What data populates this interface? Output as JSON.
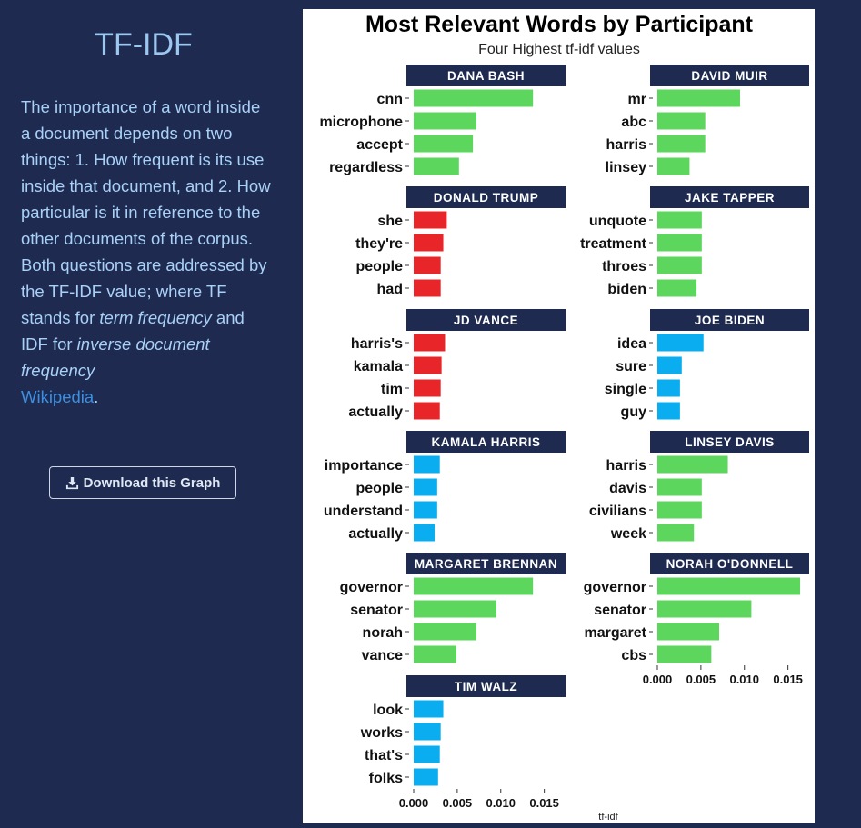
{
  "sidebar": {
    "title": "TF-IDF",
    "desc_part1": "The importance of a word inside a document depends on two things: 1. How frequent is its use inside that document, and 2. How particular is it in reference to the other documents of the corpus. Both questions are addressed by the TF-IDF value; where TF stands for ",
    "desc_em1": "term frequency",
    "desc_part2": " and IDF for ",
    "desc_em2": "inverse document frequency",
    "desc_link": "Wikipedia",
    "desc_end": ".",
    "download_label": "Download this Graph",
    "download_icon": "download-icon"
  },
  "colors": {
    "page_bg": "#1e2a50",
    "strip_bg": "#1e2a50",
    "green": "#5cd65c",
    "red": "#e8262a",
    "blue": "#0aaef0"
  },
  "chart_data": {
    "type": "bar",
    "orientation": "horizontal",
    "title": "Most Relevant Words by Participant",
    "subtitle": "Four Highest tf-idf values",
    "xlabel": "tf-idf",
    "xlim": [
      0,
      0.0165
    ],
    "xticks": [
      "0.000",
      "0.005",
      "0.010",
      "0.015"
    ],
    "facets": [
      {
        "name": "DANA BASH",
        "color": "green",
        "words": [
          "cnn",
          "microphone",
          "accept",
          "regardless"
        ],
        "values": [
          0.0137,
          0.0072,
          0.0068,
          0.0052
        ]
      },
      {
        "name": "DAVID MUIR",
        "color": "green",
        "words": [
          "mr",
          "abc",
          "harris",
          "linsey"
        ],
        "values": [
          0.0095,
          0.0055,
          0.0055,
          0.0037
        ]
      },
      {
        "name": "DONALD TRUMP",
        "color": "red",
        "words": [
          "she",
          "they're",
          "people",
          "had"
        ],
        "values": [
          0.0038,
          0.0034,
          0.0031,
          0.0031
        ]
      },
      {
        "name": "JAKE TAPPER",
        "color": "green",
        "words": [
          "unquote",
          "treatment",
          "throes",
          "biden"
        ],
        "values": [
          0.0051,
          0.0051,
          0.0051,
          0.0045
        ]
      },
      {
        "name": "JD VANCE",
        "color": "red",
        "words": [
          "harris's",
          "kamala",
          "tim",
          "actually"
        ],
        "values": [
          0.0036,
          0.0032,
          0.0031,
          0.003
        ]
      },
      {
        "name": "JOE BIDEN",
        "color": "blue",
        "words": [
          "idea",
          "sure",
          "single",
          "guy"
        ],
        "values": [
          0.0053,
          0.0028,
          0.0026,
          0.0026
        ]
      },
      {
        "name": "KAMALA HARRIS",
        "color": "blue",
        "words": [
          "importance",
          "people",
          "understand",
          "actually"
        ],
        "values": [
          0.003,
          0.0027,
          0.0027,
          0.0024
        ]
      },
      {
        "name": "LINSEY DAVIS",
        "color": "green",
        "words": [
          "harris",
          "davis",
          "civilians",
          "week"
        ],
        "values": [
          0.0081,
          0.0051,
          0.0051,
          0.0042
        ]
      },
      {
        "name": "MARGARET BRENNAN",
        "color": "green",
        "words": [
          "governor",
          "senator",
          "norah",
          "vance"
        ],
        "values": [
          0.0137,
          0.0095,
          0.0072,
          0.0049
        ]
      },
      {
        "name": "NORAH O'DONNELL",
        "color": "green",
        "words": [
          "governor",
          "senator",
          "margaret",
          "cbs"
        ],
        "values": [
          0.0164,
          0.0108,
          0.0071,
          0.0062
        ]
      },
      {
        "name": "TIM WALZ",
        "color": "blue",
        "words": [
          "look",
          "works",
          "that's",
          "folks"
        ],
        "values": [
          0.0034,
          0.0031,
          0.003,
          0.0028
        ]
      }
    ]
  }
}
